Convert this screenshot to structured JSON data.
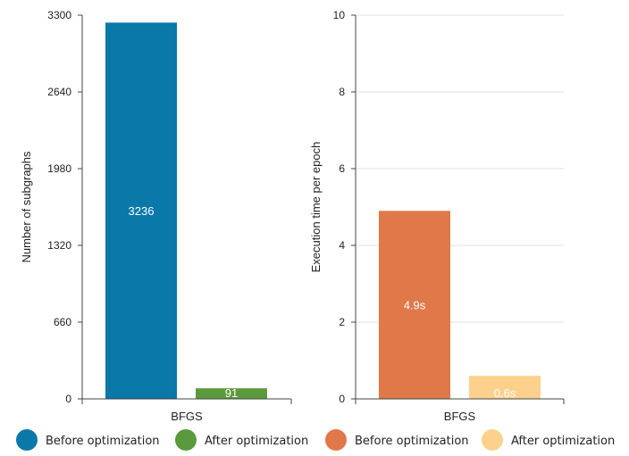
{
  "chart_data": [
    {
      "type": "bar",
      "categories": [
        "BFGS"
      ],
      "series": [
        {
          "name": "Before optimization",
          "values": [
            3236
          ],
          "label": "3236",
          "color": "#0a78a8"
        },
        {
          "name": "After optimization",
          "values": [
            91
          ],
          "label": "91",
          "color": "#5b9a3c"
        }
      ],
      "xlabel": "",
      "ylabel": "Number of subgraphs",
      "ylim": [
        0,
        3300
      ],
      "yticks": [
        0,
        660,
        1320,
        1980,
        2640,
        3300
      ],
      "grid": false
    },
    {
      "type": "bar",
      "categories": [
        "BFGS"
      ],
      "series": [
        {
          "name": "Before optimization",
          "values": [
            4.9
          ],
          "label": "4.9s",
          "color": "#e0784a"
        },
        {
          "name": "After optimization",
          "values": [
            0.6
          ],
          "label": "0.6s",
          "color": "#fdd18c"
        }
      ],
      "xlabel": "",
      "ylabel": "Execution time per epoch",
      "ylim": [
        0,
        10
      ],
      "yticks": [
        0,
        2,
        4,
        6,
        8,
        10
      ],
      "grid": true
    }
  ],
  "legend": {
    "placement": "bottom"
  }
}
